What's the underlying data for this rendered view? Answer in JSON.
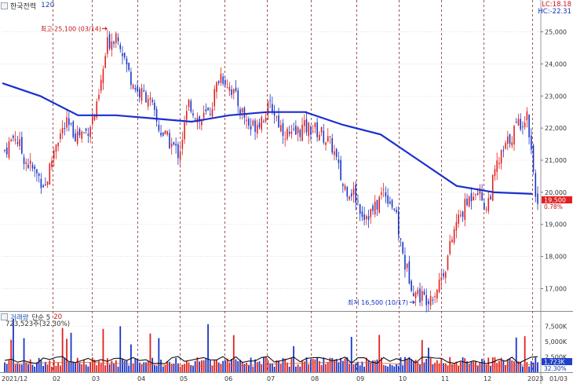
{
  "header": {
    "title": "한국전력",
    "period": "120"
  },
  "stats": {
    "lc": "LC:18.18",
    "hc": "HC:-22.31"
  },
  "price_box": {
    "value": "19,500",
    "change": "0.78%"
  },
  "annotations": {
    "high": "최고 25,100 (03/14)",
    "low": "최저 16,500 (10/17)"
  },
  "volume": {
    "title": "거래량",
    "ma_label": "단순 5",
    "ma_period": "20",
    "value": "723,523주(32.30%)",
    "box": "1,723K",
    "pct": "32.30%"
  },
  "colors": {
    "up": "#e0201f",
    "down": "#1a35c6",
    "ma": "#1b2fcf",
    "vol_ma": "#111111",
    "vol_ma2": "#e06030"
  },
  "chart_data": {
    "type": "candlestick",
    "price_ylim": [
      16400,
      25600
    ],
    "price_ticks": [
      "25,000",
      "24,000",
      "23,000",
      "22,000",
      "21,000",
      "20,000",
      "19,000",
      "18,000",
      "17,000"
    ],
    "price_tick_values": [
      25000,
      24000,
      23000,
      22000,
      21000,
      20000,
      19000,
      18000,
      17000
    ],
    "volume_ticks": [
      "7,500K",
      "5,000K",
      "2,500K"
    ],
    "volume_tick_values": [
      7500,
      5000,
      2500
    ],
    "volume_ylim": [
      0,
      9000
    ],
    "x_labels": [
      "2021/12",
      "02",
      "03",
      "04",
      "05",
      "06",
      "07",
      "08",
      "09",
      "10",
      "11",
      "12",
      "2023",
      "01/03"
    ],
    "ma_series_name": "",
    "close_path": [
      [
        "2021/12",
        21300
      ],
      [
        "12-mid",
        21800
      ],
      [
        "12-end",
        21000
      ],
      [
        "01-a",
        20600
      ],
      [
        "01-b",
        20200
      ],
      [
        "01-c",
        21600
      ],
      [
        "01-d",
        22100
      ],
      [
        "02-a",
        21800
      ],
      [
        "02-b",
        21900
      ],
      [
        "02-c",
        22600
      ],
      [
        "03-a",
        24600
      ],
      [
        "03-b",
        25000
      ],
      [
        "03-c",
        23800
      ],
      [
        "03-d",
        23100
      ],
      [
        "04-a",
        23000
      ],
      [
        "04-b",
        22000
      ],
      [
        "04-c",
        21600
      ],
      [
        "04-d",
        21200
      ],
      [
        "05-a",
        22800
      ],
      [
        "05-b",
        22200
      ],
      [
        "05-c",
        22500
      ],
      [
        "06-a",
        23700
      ],
      [
        "06-b",
        23300
      ],
      [
        "06-c",
        22600
      ],
      [
        "06-d",
        22000
      ],
      [
        "07-a",
        22300
      ],
      [
        "07-b",
        22700
      ],
      [
        "07-c",
        22000
      ],
      [
        "07-d",
        21700
      ],
      [
        "08-a",
        22000
      ],
      [
        "08-b",
        22000
      ],
      [
        "08-c",
        21800
      ],
      [
        "08-d",
        21400
      ],
      [
        "09-a",
        20200
      ],
      [
        "09-b",
        20000
      ],
      [
        "09-c",
        19300
      ],
      [
        "09-d",
        19400
      ],
      [
        "10-a",
        20100
      ],
      [
        "10-b",
        19500
      ],
      [
        "10-c",
        17800
      ],
      [
        "10-d",
        16900
      ],
      [
        "11-a",
        16700
      ],
      [
        "11-b",
        16900
      ],
      [
        "11-c",
        17700
      ],
      [
        "11-d",
        19000
      ],
      [
        "12-a",
        19600
      ],
      [
        "12-b",
        20200
      ],
      [
        "12-c",
        19500
      ],
      [
        "12-d",
        20800
      ],
      [
        "2023-a",
        21500
      ],
      [
        "2023-b",
        22100
      ],
      [
        "2023-c",
        22400
      ],
      [
        "01/03",
        19500
      ]
    ],
    "ma_path": [
      [
        "2021/12",
        23400
      ],
      [
        "01",
        23000
      ],
      [
        "02",
        22400
      ],
      [
        "03",
        22400
      ],
      [
        "04",
        22300
      ],
      [
        "05",
        22200
      ],
      [
        "06",
        22400
      ],
      [
        "07",
        22500
      ],
      [
        "08",
        22500
      ],
      [
        "09",
        22100
      ],
      [
        "10",
        21800
      ],
      [
        "11",
        21000
      ],
      [
        "12",
        20200
      ],
      [
        "2023",
        20000
      ],
      [
        "01/03",
        19950
      ]
    ]
  }
}
